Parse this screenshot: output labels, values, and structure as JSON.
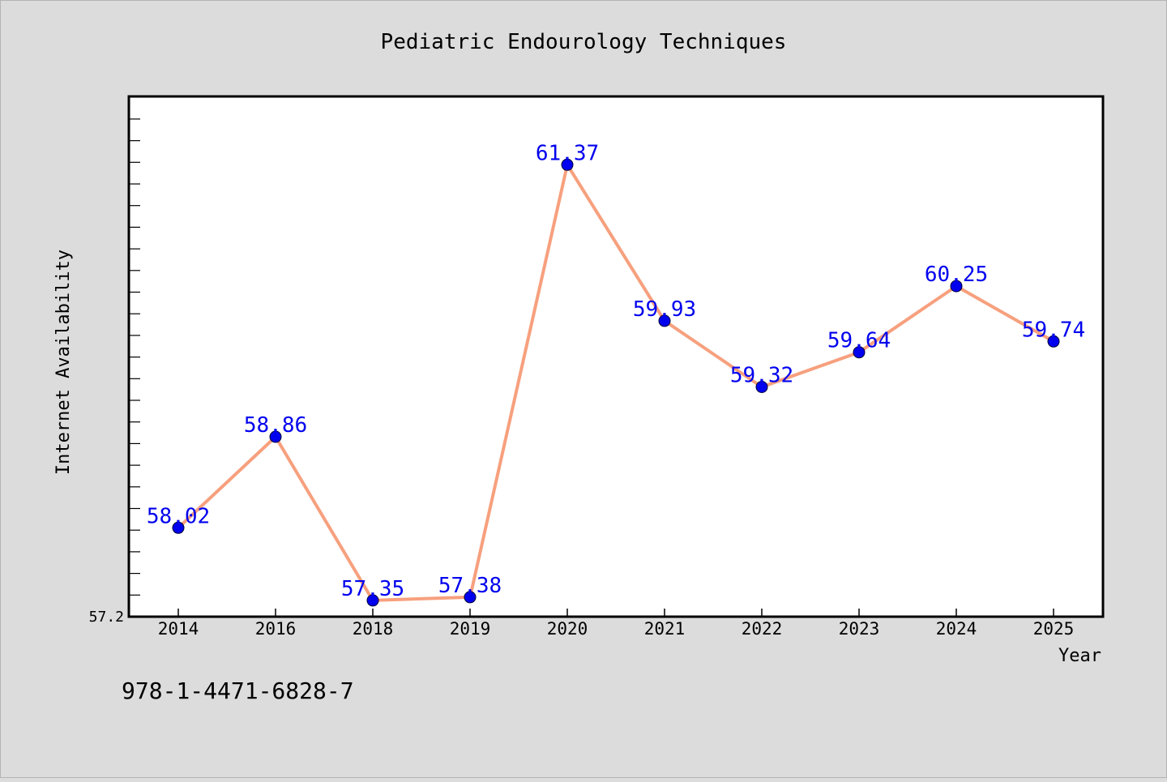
{
  "chart_data": {
    "type": "line",
    "title": "Pediatric Endourology Techniques",
    "xlabel": "Year",
    "ylabel": "Internet Availability",
    "categories": [
      "2014",
      "2016",
      "2018",
      "2019",
      "2020",
      "2021",
      "2022",
      "2023",
      "2024",
      "2025"
    ],
    "series": [
      {
        "values": [
          58.02,
          58.86,
          57.35,
          57.38,
          61.37,
          59.93,
          59.32,
          59.64,
          60.25,
          59.74
        ],
        "labels": [
          "58.02",
          "58.86",
          "57.35",
          "57.38",
          "61.37",
          "59.93",
          "59.32",
          "59.64",
          "60.25",
          "59.74"
        ],
        "line_color": "#f7a07e",
        "marker_color": "#0000ee",
        "label_color": "#0000ee"
      }
    ],
    "ylim": [
      57.2,
      62.0
    ],
    "ytick_label": "57.2",
    "grid": false,
    "legend": "none"
  },
  "annotation": "978-1-4471-6828-7",
  "colors": {
    "background": "#dcdcdc",
    "plot_background": "#ffffff",
    "axis": "#000000"
  }
}
